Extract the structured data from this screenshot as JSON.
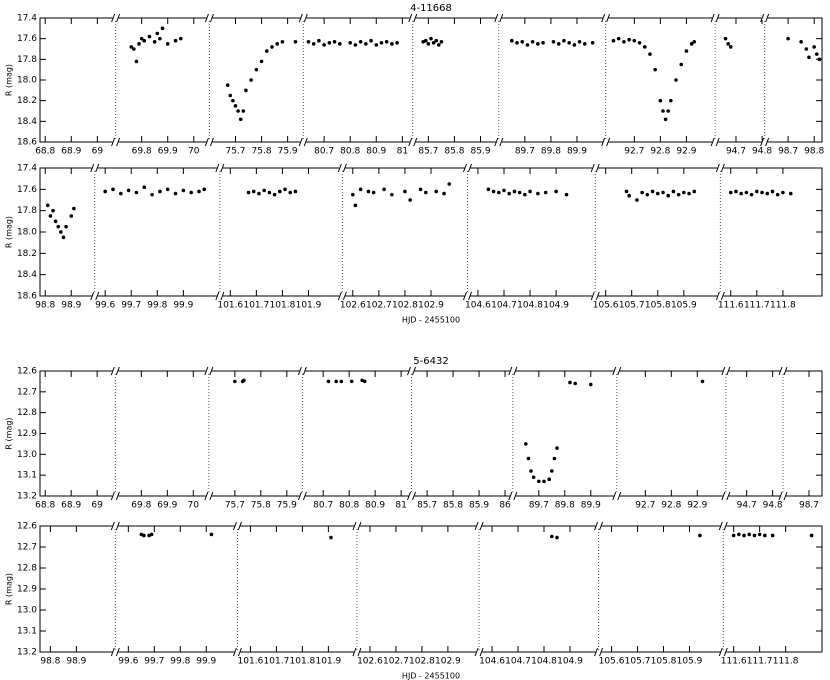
{
  "chart_data": [
    {
      "type": "scatter",
      "title": "4-11668",
      "ylabel": "R (mag)",
      "color": "#000000",
      "y_inverted": true,
      "ylim": [
        17.4,
        18.6
      ],
      "yticks": [
        17.4,
        17.6,
        17.8,
        {
          "value": 18.0,
          "label": "18.0"
        },
        18.2,
        18.4,
        18.6
      ],
      "segments": [
        {
          "xlim": [
            68.78,
            69.07
          ],
          "xticks": [
            68.8,
            68.9,
            69
          ],
          "x": [],
          "y": []
        },
        {
          "xlim": [
            69.7,
            70.06
          ],
          "xticks": [
            69.8,
            69.9,
            70
          ],
          "x": [
            69.76,
            69.77,
            69.78,
            69.79,
            69.8,
            69.81,
            69.83,
            69.85,
            69.86,
            69.87,
            69.88,
            69.9,
            69.93,
            69.95
          ],
          "y": [
            17.68,
            17.7,
            17.82,
            17.65,
            17.6,
            17.62,
            17.58,
            17.63,
            17.55,
            17.6,
            17.5,
            17.65,
            17.62,
            17.6
          ]
        },
        {
          "xlim": [
            75.6,
            75.96
          ],
          "xticks": [
            75.7,
            75.8,
            75.9
          ],
          "x": [
            75.67,
            75.68,
            75.69,
            75.7,
            75.71,
            75.72,
            75.73,
            75.74,
            75.76,
            75.78,
            75.8,
            75.82,
            75.84,
            75.86,
            75.88,
            75.93
          ],
          "y": [
            18.05,
            18.15,
            18.2,
            18.25,
            18.3,
            18.38,
            18.3,
            18.1,
            18.0,
            17.9,
            17.82,
            17.72,
            17.68,
            17.65,
            17.63,
            17.63
          ]
        },
        {
          "xlim": [
            80.62,
            81.04
          ],
          "xticks": [
            80.7,
            80.8,
            80.9,
            81
          ],
          "x": [
            80.64,
            80.66,
            80.68,
            80.7,
            80.72,
            80.74,
            80.76,
            80.8,
            80.82,
            80.84,
            80.86,
            80.88,
            80.9,
            80.92,
            80.94,
            80.96,
            80.98
          ],
          "y": [
            17.63,
            17.65,
            17.62,
            17.66,
            17.64,
            17.63,
            17.65,
            17.64,
            17.66,
            17.63,
            17.65,
            17.62,
            17.66,
            17.64,
            17.63,
            17.65,
            17.64
          ]
        },
        {
          "xlim": [
            85.64,
            85.97
          ],
          "xticks": [
            85.7,
            85.8,
            85.9
          ],
          "x": [
            85.68,
            85.69,
            85.7,
            85.71,
            85.72,
            85.73,
            85.74,
            85.75
          ],
          "y": [
            17.63,
            17.62,
            17.65,
            17.6,
            17.64,
            17.62,
            17.66,
            17.63
          ]
        },
        {
          "xlim": [
            89.6,
            90.01
          ],
          "xticks": [
            89.7,
            89.8,
            89.9
          ],
          "x": [
            89.65,
            89.67,
            89.69,
            89.71,
            89.73,
            89.75,
            89.77,
            89.81,
            89.83,
            89.85,
            89.87,
            89.89,
            89.91,
            89.93,
            89.96
          ],
          "y": [
            17.62,
            17.64,
            17.63,
            17.66,
            17.63,
            17.65,
            17.64,
            17.63,
            17.65,
            17.62,
            17.64,
            17.66,
            17.63,
            17.65,
            17.64
          ]
        },
        {
          "xlim": [
            92.59,
            93.01
          ],
          "xticks": [
            92.7,
            92.8,
            92.9
          ],
          "x": [
            92.62,
            92.64,
            92.66,
            92.68,
            92.7,
            92.72,
            92.74,
            92.76,
            92.78,
            92.8,
            92.81,
            92.82,
            92.83,
            92.84,
            92.86,
            92.88,
            92.9,
            92.92,
            92.93
          ],
          "y": [
            17.62,
            17.6,
            17.63,
            17.61,
            17.62,
            17.64,
            17.68,
            17.75,
            17.9,
            18.2,
            18.3,
            18.38,
            18.3,
            18.2,
            18.0,
            17.85,
            17.72,
            17.65,
            17.63
          ]
        },
        {
          "xlim": [
            94.62,
            94.81
          ],
          "xticks": [
            94.7,
            94.8
          ],
          "x": [
            94.66,
            94.67,
            94.68
          ],
          "y": [
            17.6,
            17.65,
            17.68
          ]
        },
        {
          "xlim": [
            98.61,
            98.83
          ],
          "xticks": [
            98.7,
            98.8
          ],
          "x": [
            98.7,
            98.75,
            98.77,
            98.78,
            98.8,
            98.81,
            98.82
          ],
          "y": [
            17.6,
            17.63,
            17.7,
            17.78,
            17.68,
            17.75,
            17.8
          ]
        }
      ]
    },
    {
      "type": "scatter",
      "ylabel": "R (mag)",
      "xlabel": "HJD - 2455100",
      "color": "#000000",
      "y_inverted": true,
      "ylim": [
        17.4,
        18.6
      ],
      "yticks": [
        17.4,
        17.6,
        17.8,
        {
          "value": 18.0,
          "label": "18.0"
        },
        18.2,
        18.4,
        18.6
      ],
      "segments": [
        {
          "xlim": [
            98.78,
            98.99
          ],
          "xticks": [
            98.8,
            98.9
          ],
          "x": [
            98.81,
            98.82,
            98.83,
            98.84,
            98.85,
            98.86,
            98.87,
            98.88,
            98.9,
            98.91
          ],
          "y": [
            17.75,
            17.85,
            17.8,
            17.9,
            17.95,
            18.0,
            18.05,
            17.95,
            17.85,
            17.78
          ]
        },
        {
          "xlim": [
            99.56,
            100.04
          ],
          "xticks": [
            99.6,
            99.7,
            99.8,
            99.9
          ],
          "x": [
            99.6,
            99.63,
            99.66,
            99.69,
            99.72,
            99.75,
            99.78,
            99.81,
            99.84,
            99.87,
            99.9,
            99.93,
            99.96,
            99.98
          ],
          "y": [
            17.62,
            17.6,
            17.64,
            17.61,
            17.63,
            17.58,
            17.65,
            17.62,
            17.6,
            17.64,
            17.61,
            17.63,
            17.62,
            17.6
          ]
        },
        {
          "xlim": [
            101.56,
            102.03
          ],
          "xticks": [
            101.6,
            101.7,
            101.8,
            101.9
          ],
          "x": [
            101.67,
            101.69,
            101.71,
            101.73,
            101.75,
            101.77,
            101.79,
            101.81,
            101.83,
            101.85
          ],
          "y": [
            17.63,
            17.62,
            17.64,
            17.61,
            17.63,
            17.65,
            17.62,
            17.6,
            17.63,
            17.62
          ]
        },
        {
          "xlim": [
            102.56,
            103.04
          ],
          "xticks": [
            102.6,
            102.7,
            102.8,
            102.9
          ],
          "x": [
            102.6,
            102.61,
            102.63,
            102.66,
            102.68,
            102.72,
            102.75,
            102.8,
            102.82,
            102.86,
            102.88,
            102.92,
            102.95,
            102.97
          ],
          "y": [
            17.65,
            17.75,
            17.6,
            17.62,
            17.63,
            17.6,
            17.65,
            17.62,
            17.7,
            17.6,
            17.63,
            17.62,
            17.64,
            17.55
          ]
        },
        {
          "xlim": [
            104.56,
            105.05
          ],
          "xticks": [
            104.6,
            104.7,
            104.8,
            104.9
          ],
          "x": [
            104.64,
            104.66,
            104.68,
            104.7,
            104.72,
            104.74,
            104.76,
            104.78,
            104.8,
            104.83,
            104.86,
            104.9,
            104.94
          ],
          "y": [
            17.6,
            17.62,
            17.63,
            17.61,
            17.64,
            17.62,
            17.63,
            17.65,
            17.62,
            17.64,
            17.63,
            17.62,
            17.65
          ]
        },
        {
          "xlim": [
            105.56,
            106.04
          ],
          "xticks": [
            105.6,
            105.7,
            105.8,
            105.9
          ],
          "x": [
            105.68,
            105.69,
            105.72,
            105.74,
            105.76,
            105.78,
            105.8,
            105.82,
            105.84,
            105.86,
            105.88,
            105.9,
            105.92,
            105.94
          ],
          "y": [
            17.62,
            17.66,
            17.7,
            17.63,
            17.65,
            17.62,
            17.64,
            17.63,
            17.66,
            17.62,
            17.65,
            17.63,
            17.64,
            17.62
          ]
        },
        {
          "xlim": [
            111.56,
            111.95
          ],
          "xticks": [
            111.6,
            111.7,
            111.8
          ],
          "x": [
            111.6,
            111.62,
            111.64,
            111.66,
            111.68,
            111.7,
            111.72,
            111.74,
            111.76,
            111.78,
            111.8,
            111.83
          ],
          "y": [
            17.63,
            17.62,
            17.64,
            17.63,
            17.65,
            17.62,
            17.63,
            17.64,
            17.62,
            17.65,
            17.63,
            17.64
          ]
        }
      ]
    },
    {
      "type": "scatter",
      "title": "5-6432",
      "ylabel": "R (mag)",
      "color": "#000000",
      "y_inverted": true,
      "ylim": [
        12.6,
        13.2
      ],
      "yticks": [
        12.6,
        12.7,
        12.8,
        12.9,
        {
          "value": 13.0,
          "label": "13.0"
        },
        13.1,
        13.2
      ],
      "segments": [
        {
          "xlim": [
            68.78,
            69.07
          ],
          "xticks": [
            68.8,
            68.9,
            69
          ],
          "x": [],
          "y": []
        },
        {
          "xlim": [
            69.7,
            70.06
          ],
          "xticks": [
            69.8,
            69.9,
            70
          ],
          "x": [],
          "y": []
        },
        {
          "xlim": [
            75.6,
            75.96
          ],
          "xticks": [
            75.7,
            75.8,
            75.9
          ],
          "x": [
            75.7,
            75.73,
            75.735
          ],
          "y": [
            12.65,
            12.65,
            12.645
          ]
        },
        {
          "xlim": [
            80.62,
            81.04
          ],
          "xticks": [
            80.7,
            80.8,
            80.9,
            81
          ],
          "x": [
            80.72,
            80.75,
            80.77,
            80.81,
            80.85,
            80.86
          ],
          "y": [
            12.65,
            12.65,
            12.65,
            12.65,
            12.645,
            12.65
          ]
        },
        {
          "xlim": [
            85.64,
            86.03
          ],
          "xticks": [
            85.7,
            85.8,
            85.9,
            86
          ],
          "x": [],
          "y": []
        },
        {
          "xlim": [
            89.6,
            90.0
          ],
          "xticks": [
            89.7,
            89.8,
            89.9
          ],
          "x": [
            89.65,
            89.66,
            89.67,
            89.68,
            89.7,
            89.72,
            89.74,
            89.75,
            89.76,
            89.77,
            89.82,
            89.84,
            89.9
          ],
          "y": [
            12.95,
            13.02,
            13.08,
            13.11,
            13.13,
            13.13,
            13.12,
            13.08,
            13.02,
            12.97,
            12.655,
            12.66,
            12.665
          ]
        },
        {
          "xlim": [
            92.59,
            93.01
          ],
          "xticks": [
            92.7,
            92.8,
            92.9
          ],
          "x": [
            92.92
          ],
          "y": [
            12.65
          ]
        },
        {
          "xlim": [
            94.62,
            94.84
          ],
          "xticks": [
            94.7,
            94.8
          ],
          "x": [],
          "y": []
        },
        {
          "xlim": [
            98.6,
            98.75
          ],
          "xticks": [
            98.7
          ],
          "x": [],
          "y": []
        }
      ]
    },
    {
      "type": "scatter",
      "ylabel": "R (mag)",
      "xlabel": "HJD - 2455100",
      "color": "#000000",
      "y_inverted": true,
      "ylim": [
        12.6,
        13.2
      ],
      "yticks": [
        12.6,
        12.7,
        12.8,
        12.9,
        {
          "value": 13.0,
          "label": "13.0"
        },
        13.1,
        13.2
      ],
      "segments": [
        {
          "xlim": [
            98.76,
            99.05
          ],
          "xticks": [
            98.8,
            98.9
          ],
          "x": [],
          "y": []
        },
        {
          "xlim": [
            99.55,
            100.02
          ],
          "xticks": [
            99.6,
            99.7,
            99.8,
            99.9
          ],
          "x": [
            99.65,
            99.66,
            99.68,
            99.69,
            99.92
          ],
          "y": [
            12.64,
            12.645,
            12.645,
            12.64,
            12.64
          ]
        },
        {
          "xlim": [
            101.55,
            102.01
          ],
          "xticks": [
            101.6,
            101.7,
            101.8,
            101.9
          ],
          "x": [
            101.91
          ],
          "y": [
            12.655
          ]
        },
        {
          "xlim": [
            102.55,
            103.02
          ],
          "xticks": [
            102.6,
            102.7,
            102.8,
            102.9
          ],
          "x": [],
          "y": []
        },
        {
          "xlim": [
            104.55,
            105.01
          ],
          "xticks": [
            104.6,
            104.7,
            104.8,
            104.9
          ],
          "x": [
            104.83,
            104.85
          ],
          "y": [
            12.65,
            12.655
          ]
        },
        {
          "xlim": [
            105.55,
            106.03
          ],
          "xticks": [
            105.6,
            105.7,
            105.8,
            105.9
          ],
          "x": [
            105.94
          ],
          "y": [
            12.645
          ]
        },
        {
          "xlim": [
            111.56,
            111.94
          ],
          "xticks": [
            111.6,
            111.7,
            111.8
          ],
          "x": [
            111.6,
            111.62,
            111.64,
            111.66,
            111.68,
            111.7,
            111.72,
            111.75,
            111.9
          ],
          "y": [
            12.645,
            12.64,
            12.645,
            12.64,
            12.645,
            12.64,
            12.645,
            12.645,
            12.645
          ]
        }
      ]
    }
  ]
}
